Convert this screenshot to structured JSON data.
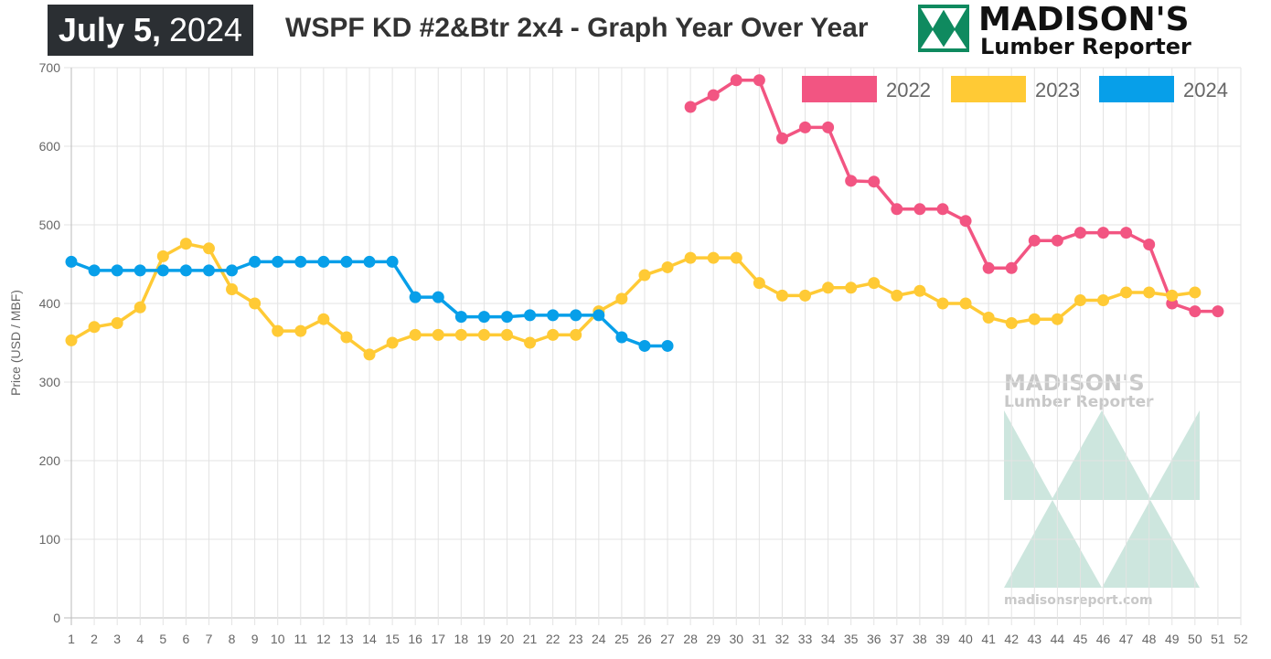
{
  "header": {
    "date_month_day": "July 5,",
    "date_year": "2024",
    "title": "WSPF KD #2&Btr 2x4 - Graph Year Over Year"
  },
  "logo": {
    "name": "MADISON'S",
    "sub": "Lumber Reporter",
    "brand_color": "#0f8a5f",
    "watermark_url": "madisonsreport.com"
  },
  "chart_data": {
    "type": "line",
    "title": "WSPF KD #2&Btr 2x4 - Graph Year Over Year",
    "xlabel": "",
    "ylabel": "Price (USD / MBF)",
    "x": [
      1,
      2,
      3,
      4,
      5,
      6,
      7,
      8,
      9,
      10,
      11,
      12,
      13,
      14,
      15,
      16,
      17,
      18,
      19,
      20,
      21,
      22,
      23,
      24,
      25,
      26,
      27,
      28,
      29,
      30,
      31,
      32,
      33,
      34,
      35,
      36,
      37,
      38,
      39,
      40,
      41,
      42,
      43,
      44,
      45,
      46,
      47,
      48,
      49,
      50,
      51,
      52
    ],
    "xlim": [
      1,
      52
    ],
    "ylim": [
      0,
      700
    ],
    "yticks": [
      0,
      100,
      200,
      300,
      400,
      500,
      600,
      700
    ],
    "grid": true,
    "legend_position": "top-right",
    "series": [
      {
        "name": "2022",
        "color": "#f25582",
        "x": [
          28,
          29,
          30,
          31,
          32,
          33,
          34,
          35,
          36,
          37,
          38,
          39,
          40,
          41,
          42,
          43,
          44,
          45,
          46,
          47,
          48,
          49,
          50,
          51
        ],
        "values": [
          650,
          665,
          684,
          684,
          610,
          624,
          624,
          556,
          555,
          520,
          520,
          520,
          505,
          445,
          445,
          480,
          480,
          490,
          490,
          490,
          475,
          400,
          390,
          390
        ]
      },
      {
        "name": "2023",
        "color": "#ffca35",
        "x": [
          1,
          2,
          3,
          4,
          5,
          6,
          7,
          8,
          9,
          10,
          11,
          12,
          13,
          14,
          15,
          16,
          17,
          18,
          19,
          20,
          21,
          22,
          23,
          24,
          25,
          26,
          27,
          28,
          29,
          30,
          31,
          32,
          33,
          34,
          35,
          36,
          37,
          38,
          39,
          40,
          41,
          42,
          43,
          44,
          45,
          46,
          47,
          48,
          49,
          50
        ],
        "values": [
          353,
          370,
          375,
          395,
          460,
          476,
          470,
          418,
          400,
          365,
          365,
          380,
          357,
          335,
          350,
          360,
          360,
          360,
          360,
          360,
          350,
          360,
          360,
          390,
          406,
          436,
          446,
          458,
          458,
          458,
          426,
          410,
          410,
          420,
          420,
          426,
          410,
          416,
          400,
          400,
          382,
          375,
          380,
          380,
          404,
          404,
          414,
          414,
          410,
          414
        ]
      },
      {
        "name": "2024",
        "color": "#079fe9",
        "x": [
          1,
          2,
          3,
          4,
          5,
          6,
          7,
          8,
          9,
          10,
          11,
          12,
          13,
          14,
          15,
          16,
          17,
          18,
          19,
          20,
          21,
          22,
          23,
          24,
          25,
          26,
          27
        ],
        "values": [
          453,
          442,
          442,
          442,
          442,
          442,
          442,
          442,
          453,
          453,
          453,
          453,
          453,
          453,
          453,
          408,
          408,
          383,
          383,
          383,
          385,
          385,
          385,
          385,
          357,
          346,
          346
        ]
      }
    ]
  }
}
